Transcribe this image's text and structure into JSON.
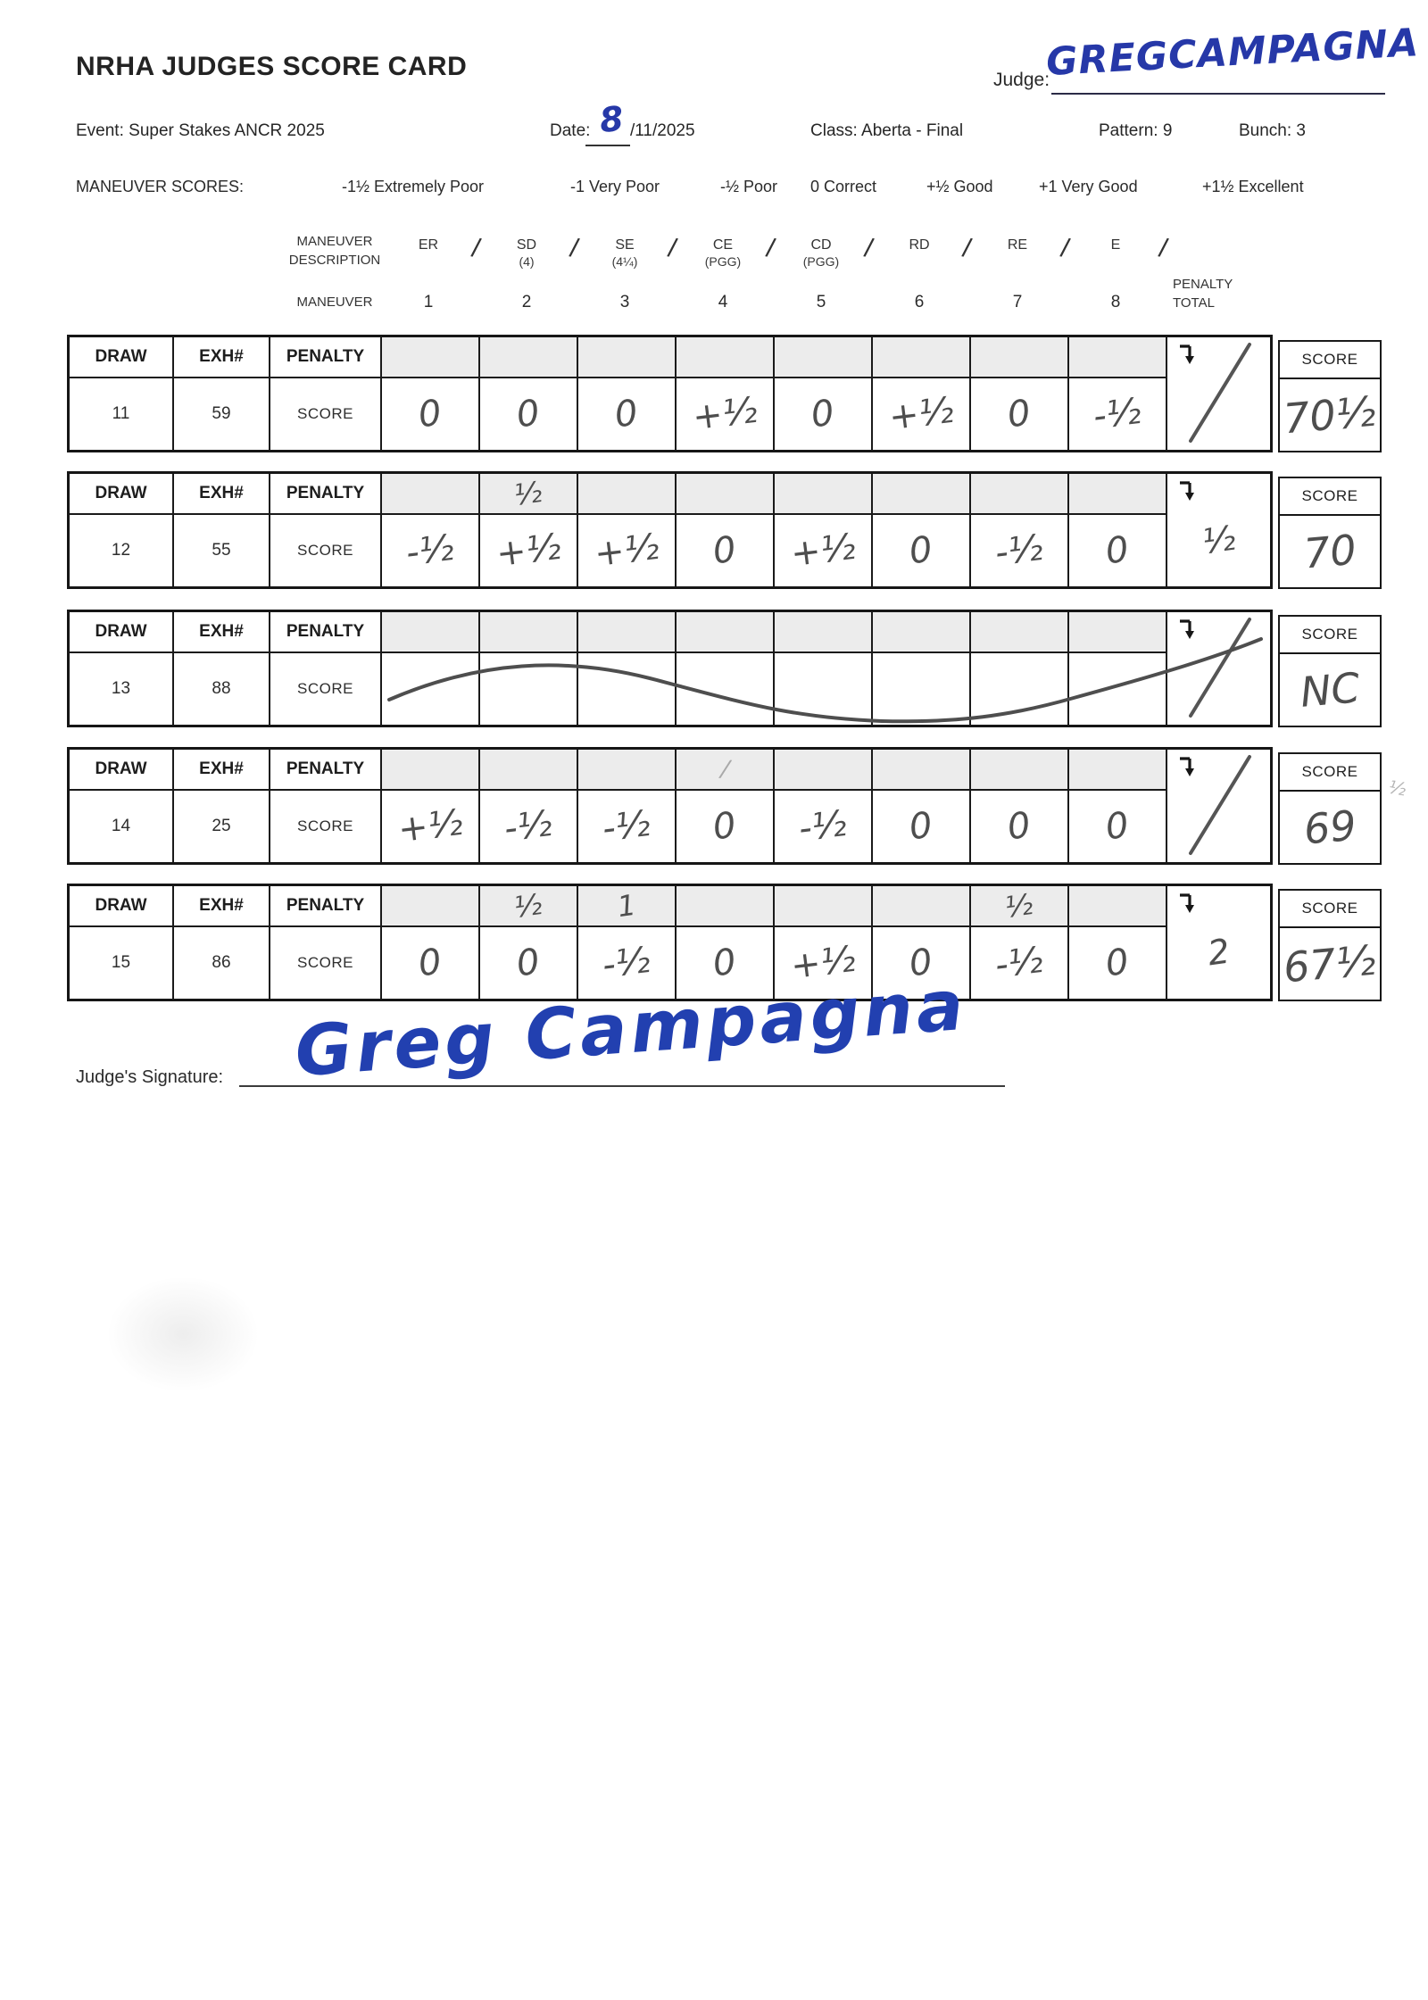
{
  "title": "NRHA JUDGES SCORE CARD",
  "judge": {
    "label": "Judge:",
    "name": "GREGCAMPAGNA"
  },
  "meta": {
    "event": "Event: Super Stakes ANCR 2025",
    "date_label": "Date:",
    "date_day": "8",
    "date_rest": "/11/2025",
    "class": "Class: Aberta - Final",
    "pattern": "Pattern: 9",
    "bunch": "Bunch: 3"
  },
  "legend": {
    "label": "MANEUVER SCORES:",
    "items": [
      "-1½ Extremely Poor",
      "-1 Very Poor",
      "-½ Poor",
      "0 Correct",
      "+½ Good",
      "+1 Very Good",
      "+1½ Excellent"
    ]
  },
  "maneuver_header": {
    "desc_line1": "MANEUVER",
    "desc_line2": "DESCRIPTION",
    "row_label": "MANEUVER",
    "separator": "/",
    "codes": [
      {
        "code": "ER",
        "sub": ""
      },
      {
        "code": "SD",
        "sub": "(4)"
      },
      {
        "code": "SE",
        "sub": "(4¼)"
      },
      {
        "code": "CE",
        "sub": "(PGG)"
      },
      {
        "code": "CD",
        "sub": "(PGG)"
      },
      {
        "code": "RD",
        "sub": ""
      },
      {
        "code": "RE",
        "sub": ""
      },
      {
        "code": "E",
        "sub": ""
      }
    ],
    "numbers": [
      "1",
      "2",
      "3",
      "4",
      "5",
      "6",
      "7",
      "8"
    ],
    "penalty_total_line1": "PENALTY",
    "penalty_total_line2": "TOTAL"
  },
  "table_labels": {
    "draw": "DRAW",
    "exh": "EXH#",
    "penalty": "PENALTY",
    "score_row": "SCORE",
    "score_box": "SCORE"
  },
  "tables": [
    {
      "draw": "11",
      "exh": "59",
      "penalties": [
        "",
        "",
        "",
        "",
        "",
        "",
        "",
        ""
      ],
      "scores": [
        "0",
        "0",
        "0",
        "+½",
        "0",
        "+½",
        "0",
        "-½"
      ],
      "penalty_total": "/",
      "total": "70½",
      "struck": false,
      "margin_note": ""
    },
    {
      "draw": "12",
      "exh": "55",
      "penalties": [
        "",
        "½",
        "",
        "",
        "",
        "",
        "",
        ""
      ],
      "scores": [
        "-½",
        "+½",
        "+½",
        "0",
        "+½",
        "0",
        "-½",
        "0"
      ],
      "penalty_total": "½",
      "total": "70",
      "struck": false,
      "margin_note": ""
    },
    {
      "draw": "13",
      "exh": "88",
      "penalties": [
        "",
        "",
        "",
        "",
        "",
        "",
        "",
        ""
      ],
      "scores": [
        "",
        "",
        "",
        "",
        "",
        "",
        "",
        ""
      ],
      "penalty_total": "/",
      "total": "NC",
      "struck": true,
      "margin_note": ""
    },
    {
      "draw": "14",
      "exh": "25",
      "penalties": [
        "",
        "",
        "",
        "/",
        "",
        "",
        "",
        ""
      ],
      "scores": [
        "+½",
        "-½",
        "-½",
        "0",
        "-½",
        "0",
        "0",
        "0"
      ],
      "penalty_total": "/",
      "total": "69",
      "struck": false,
      "margin_note": "½"
    },
    {
      "draw": "15",
      "exh": "86",
      "penalties": [
        "",
        "½",
        "1",
        "",
        "",
        "",
        "½",
        ""
      ],
      "scores": [
        "0",
        "0",
        "-½",
        "0",
        "+½",
        "0",
        "-½",
        "0"
      ],
      "penalty_total": "2",
      "total": "67½",
      "struck": false,
      "margin_note": ""
    }
  ],
  "signature": {
    "label": "Judge's Signature:",
    "name": "Greg Campagna"
  }
}
